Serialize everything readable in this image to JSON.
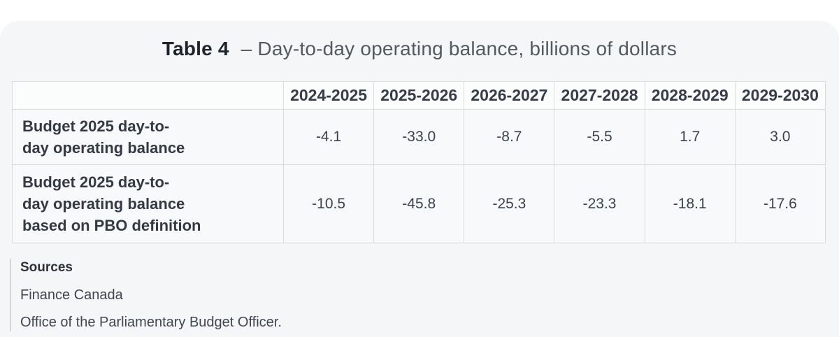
{
  "title": {
    "prefix": "Table 4",
    "rest": "– Day-to-day operating balance, billions of dollars"
  },
  "table": {
    "columns": [
      "2024-2025",
      "2025-2026",
      "2026-2027",
      "2027-2028",
      "2028-2029",
      "2029-2030"
    ],
    "rows": [
      {
        "label": "Budget 2025 day-to-\nday operating balance",
        "values": [
          "-4.1",
          "-33.0",
          "-8.7",
          "-5.5",
          "1.7",
          "3.0"
        ]
      },
      {
        "label": "Budget 2025 day-to-\nday operating balance\nbased on PBO definition",
        "values": [
          "-10.5",
          "-45.8",
          "-25.3",
          "-23.3",
          "-18.1",
          "-17.6"
        ]
      }
    ]
  },
  "sources": {
    "heading": "Sources",
    "lines": [
      "Finance Canada",
      "Office of the Parliamentary Budget Officer."
    ]
  },
  "colors": {
    "card_bg": "#f5f6f7",
    "header_bg": "#fbfcfc",
    "cell_bg": "#f8f9fa",
    "border": "#d9dbdd",
    "text_dark": "#333a46"
  },
  "chart_data": {
    "type": "table",
    "title": "Table 4 – Day-to-day operating balance, billions of dollars",
    "categories": [
      "2024-2025",
      "2025-2026",
      "2026-2027",
      "2027-2028",
      "2028-2029",
      "2029-2030"
    ],
    "series": [
      {
        "name": "Budget 2025 day-to-day operating balance",
        "values": [
          -4.1,
          -33.0,
          -8.7,
          -5.5,
          1.7,
          3.0
        ]
      },
      {
        "name": "Budget 2025 day-to-day operating balance based on PBO definition",
        "values": [
          -10.5,
          -45.8,
          -25.3,
          -23.3,
          -18.1,
          -17.6
        ]
      }
    ]
  }
}
